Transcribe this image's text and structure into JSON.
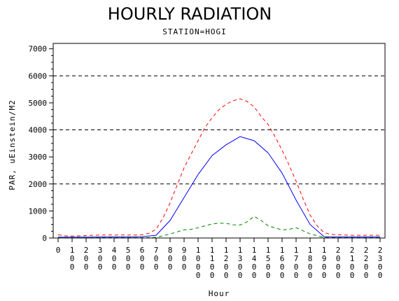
{
  "chart_data": {
    "type": "line",
    "title": "HOURLY RADIATION",
    "subtitle": "STATION=HOGI",
    "xlabel": "Hour",
    "ylabel": "PAR, uEinstein/M2",
    "ylim": [
      0,
      7200
    ],
    "yticks": [
      0,
      1000,
      2000,
      3000,
      4000,
      5000,
      6000,
      7000
    ],
    "reference_lines": [
      2000,
      4000,
      6000
    ],
    "grid": false,
    "x": [
      0,
      100,
      200,
      300,
      400,
      500,
      600,
      700,
      800,
      900,
      1000,
      1100,
      1200,
      1300,
      1400,
      1500,
      1600,
      1700,
      1800,
      1900,
      2000,
      2100,
      2200,
      2300
    ],
    "xtick_labels": [
      [
        "0"
      ],
      [
        "1",
        "0",
        "0"
      ],
      [
        "2",
        "0",
        "0"
      ],
      [
        "3",
        "0",
        "0"
      ],
      [
        "4",
        "0",
        "0"
      ],
      [
        "5",
        "0",
        "0"
      ],
      [
        "6",
        "0",
        "0"
      ],
      [
        "7",
        "0",
        "0"
      ],
      [
        "8",
        "0",
        "0"
      ],
      [
        "9",
        "0",
        "0"
      ],
      [
        "1",
        "0",
        "0",
        "0"
      ],
      [
        "1",
        "1",
        "0",
        "0"
      ],
      [
        "1",
        "2",
        "0",
        "0"
      ],
      [
        "1",
        "3",
        "0",
        "0"
      ],
      [
        "1",
        "4",
        "0",
        "0"
      ],
      [
        "1",
        "5",
        "0",
        "0"
      ],
      [
        "1",
        "6",
        "0",
        "0"
      ],
      [
        "1",
        "7",
        "0",
        "0"
      ],
      [
        "1",
        "8",
        "0",
        "0"
      ],
      [
        "1",
        "9",
        "0",
        "0"
      ],
      [
        "2",
        "0",
        "0",
        "0"
      ],
      [
        "2",
        "1",
        "0",
        "0"
      ],
      [
        "2",
        "2",
        "0",
        "0"
      ],
      [
        "2",
        "3",
        "0",
        "0"
      ]
    ],
    "series": [
      {
        "style": "dashed",
        "color": "#ff0000",
        "x": [
          0,
          50,
          100,
          150,
          200,
          250,
          300,
          350,
          400,
          450,
          500,
          550,
          600,
          650,
          700,
          750,
          800,
          850,
          900,
          950,
          1000,
          1050,
          1100,
          1150,
          1200,
          1250,
          1300,
          1350,
          1400,
          1450,
          1500,
          1550,
          1600,
          1650,
          1700,
          1750,
          1800,
          1850,
          1900,
          1950,
          2000,
          2050,
          2100,
          2150,
          2200,
          2250,
          2300
        ],
        "values": [
          120,
          80,
          70,
          80,
          90,
          100,
          110,
          110,
          110,
          110,
          110,
          110,
          120,
          180,
          320,
          750,
          1300,
          1950,
          2600,
          3100,
          3600,
          4100,
          4450,
          4750,
          4950,
          5080,
          5150,
          5050,
          4850,
          4500,
          4200,
          3750,
          3250,
          2700,
          2100,
          1450,
          850,
          450,
          200,
          130,
          120,
          110,
          100,
          100,
          100,
          100,
          100
        ]
      },
      {
        "style": "solid",
        "color": "#0000ff",
        "x": [
          0,
          100,
          200,
          300,
          400,
          500,
          600,
          700,
          800,
          900,
          1000,
          1100,
          1200,
          1300,
          1400,
          1500,
          1600,
          1700,
          1800,
          1900,
          2000,
          2100,
          2200,
          2300
        ],
        "values": [
          30,
          30,
          30,
          40,
          40,
          40,
          50,
          100,
          650,
          1500,
          2350,
          3050,
          3450,
          3750,
          3600,
          3150,
          2400,
          1400,
          500,
          50,
          40,
          40,
          40,
          40
        ]
      },
      {
        "style": "dashed",
        "color": "#008000",
        "x": [
          0,
          100,
          200,
          300,
          400,
          500,
          600,
          700,
          800,
          900,
          950,
          1000,
          1100,
          1150,
          1200,
          1250,
          1300,
          1350,
          1400,
          1450,
          1500,
          1600,
          1650,
          1700,
          1800,
          1900,
          2000,
          2100,
          2200,
          2300
        ],
        "values": [
          10,
          10,
          10,
          10,
          10,
          10,
          10,
          20,
          150,
          300,
          320,
          380,
          520,
          550,
          540,
          490,
          480,
          600,
          800,
          650,
          450,
          300,
          320,
          380,
          150,
          20,
          10,
          10,
          10,
          10
        ]
      }
    ]
  }
}
